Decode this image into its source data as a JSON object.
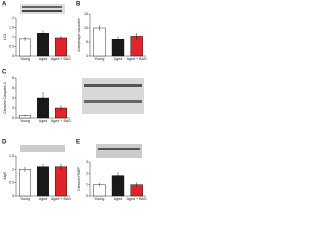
{
  "chart_data": [
    {
      "type": "bar",
      "panel": "A",
      "y_label": "LC3",
      "categories": [
        "Young",
        "Aged",
        "Aged + BAG"
      ],
      "values": [
        0.9,
        1.2,
        0.95
      ],
      "errors": [
        0.1,
        0.15,
        0.1
      ],
      "colors": [
        "#ffffff",
        "#1a1a1a",
        "#e0242a"
      ],
      "ylim": [
        0,
        2
      ],
      "yticks": [
        0,
        0.5,
        1,
        1.5,
        2
      ]
    },
    {
      "type": "bar",
      "panel": "B",
      "y_label": "Autophagic vacuoles",
      "categories": [
        "Young",
        "Aged",
        "Aged + BAG"
      ],
      "values": [
        10,
        6,
        7
      ],
      "errors": [
        1,
        1,
        1.2
      ],
      "colors": [
        "#ffffff",
        "#1a1a1a",
        "#e0242a"
      ],
      "ylim": [
        0,
        15
      ],
      "yticks": [
        0,
        5,
        10,
        15
      ]
    },
    {
      "type": "bar",
      "panel": "C",
      "y_label": "Cleaved Caspase-3",
      "categories": [
        "Young",
        "Aged",
        "Aged + BAG"
      ],
      "values": [
        0.5,
        4,
        2
      ],
      "errors": [
        0.2,
        1.2,
        0.6
      ],
      "colors": [
        "#ffffff",
        "#1a1a1a",
        "#e0242a"
      ],
      "ylim": [
        0,
        8
      ],
      "yticks": [
        0,
        2,
        4,
        6,
        8
      ]
    },
    {
      "type": "bar",
      "panel": "D",
      "y_label": "Atg5",
      "categories": [
        "Young",
        "Aged",
        "Aged + BAG"
      ],
      "values": [
        1,
        1.1,
        1.1
      ],
      "errors": [
        0.1,
        0.1,
        0.12
      ],
      "colors": [
        "#ffffff",
        "#1a1a1a",
        "#e0242a"
      ],
      "ylim": [
        0,
        1.5
      ],
      "yticks": [
        0,
        0.5,
        1,
        1.5
      ]
    },
    {
      "type": "bar",
      "panel": "E",
      "y_label": "Cleaved PARP",
      "categories": [
        "Young",
        "Aged",
        "Aged + BAG"
      ],
      "values": [
        1,
        1.8,
        1
      ],
      "errors": [
        0.15,
        0.3,
        0.2
      ],
      "colors": [
        "#ffffff",
        "#1a1a1a",
        "#e0242a"
      ],
      "ylim": [
        0,
        3
      ],
      "yticks": [
        0,
        1,
        2,
        3
      ]
    }
  ]
}
